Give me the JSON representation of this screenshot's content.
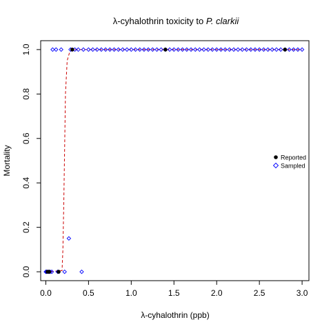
{
  "chart_data": {
    "type": "scatter",
    "title_prefix": "λ-cyhalothrin toxicity to ",
    "title_italic": "P. clarkii",
    "xlabel": "λ-cyhalothrin (ppb)",
    "ylabel": "Mortality",
    "xlim": [
      -0.06,
      3.08
    ],
    "ylim": [
      -0.04,
      1.04
    ],
    "x_ticks": [
      0.0,
      0.5,
      1.0,
      1.5,
      2.0,
      2.5,
      3.0
    ],
    "x_tick_labels": [
      "0.0",
      "0.5",
      "1.0",
      "1.5",
      "2.0",
      "2.5",
      "3.0"
    ],
    "y_ticks": [
      0.0,
      0.2,
      0.4,
      0.6,
      0.8,
      1.0
    ],
    "y_tick_labels": [
      "0.0",
      "0.2",
      "0.4",
      "0.6",
      "0.8",
      "1.0"
    ],
    "legend_position": "right",
    "series": [
      {
        "name": "Reported",
        "marker": "filled-circle",
        "color": "#000000",
        "points": [
          {
            "x": 0.02,
            "y": 0.0
          },
          {
            "x": 0.04,
            "y": 0.0
          },
          {
            "x": 0.15,
            "y": 0.0
          },
          {
            "x": 0.31,
            "y": 1.0
          },
          {
            "x": 1.4,
            "y": 1.0
          },
          {
            "x": 2.8,
            "y": 1.0
          }
        ]
      },
      {
        "name": "Sampled",
        "marker": "open-diamond",
        "color": "#0000ff",
        "points": [
          {
            "x": 0.0,
            "y": 0.0
          },
          {
            "x": 0.01,
            "y": 0.0
          },
          {
            "x": 0.03,
            "y": 0.0
          },
          {
            "x": 0.05,
            "y": 0.0
          },
          {
            "x": 0.07,
            "y": 0.0
          },
          {
            "x": 0.14,
            "y": 0.0
          },
          {
            "x": 0.22,
            "y": 0.0
          },
          {
            "x": 0.42,
            "y": 0.0
          },
          {
            "x": 0.27,
            "y": 0.15
          },
          {
            "x": 0.08,
            "y": 1.0
          },
          {
            "x": 0.12,
            "y": 1.0
          },
          {
            "x": 0.18,
            "y": 1.0
          },
          {
            "x": 0.29,
            "y": 1.0
          },
          {
            "x": 0.34,
            "y": 1.0
          },
          {
            "x": 0.38,
            "y": 1.0
          },
          {
            "x": 0.44,
            "y": 1.0
          },
          {
            "x": 0.5,
            "y": 1.0
          },
          {
            "x": 0.55,
            "y": 1.0
          },
          {
            "x": 0.6,
            "y": 1.0
          },
          {
            "x": 0.65,
            "y": 1.0
          },
          {
            "x": 0.7,
            "y": 1.0
          },
          {
            "x": 0.75,
            "y": 1.0
          },
          {
            "x": 0.8,
            "y": 1.0
          },
          {
            "x": 0.85,
            "y": 1.0
          },
          {
            "x": 0.9,
            "y": 1.0
          },
          {
            "x": 0.95,
            "y": 1.0
          },
          {
            "x": 1.0,
            "y": 1.0
          },
          {
            "x": 1.05,
            "y": 1.0
          },
          {
            "x": 1.1,
            "y": 1.0
          },
          {
            "x": 1.15,
            "y": 1.0
          },
          {
            "x": 1.2,
            "y": 1.0
          },
          {
            "x": 1.25,
            "y": 1.0
          },
          {
            "x": 1.3,
            "y": 1.0
          },
          {
            "x": 1.35,
            "y": 1.0
          },
          {
            "x": 1.4,
            "y": 1.0
          },
          {
            "x": 1.45,
            "y": 1.0
          },
          {
            "x": 1.5,
            "y": 1.0
          },
          {
            "x": 1.55,
            "y": 1.0
          },
          {
            "x": 1.6,
            "y": 1.0
          },
          {
            "x": 1.65,
            "y": 1.0
          },
          {
            "x": 1.7,
            "y": 1.0
          },
          {
            "x": 1.75,
            "y": 1.0
          },
          {
            "x": 1.8,
            "y": 1.0
          },
          {
            "x": 1.85,
            "y": 1.0
          },
          {
            "x": 1.9,
            "y": 1.0
          },
          {
            "x": 1.95,
            "y": 1.0
          },
          {
            "x": 2.0,
            "y": 1.0
          },
          {
            "x": 2.05,
            "y": 1.0
          },
          {
            "x": 2.1,
            "y": 1.0
          },
          {
            "x": 2.15,
            "y": 1.0
          },
          {
            "x": 2.2,
            "y": 1.0
          },
          {
            "x": 2.25,
            "y": 1.0
          },
          {
            "x": 2.3,
            "y": 1.0
          },
          {
            "x": 2.35,
            "y": 1.0
          },
          {
            "x": 2.4,
            "y": 1.0
          },
          {
            "x": 2.45,
            "y": 1.0
          },
          {
            "x": 2.5,
            "y": 1.0
          },
          {
            "x": 2.55,
            "y": 1.0
          },
          {
            "x": 2.6,
            "y": 1.0
          },
          {
            "x": 2.65,
            "y": 1.0
          },
          {
            "x": 2.7,
            "y": 1.0
          },
          {
            "x": 2.75,
            "y": 1.0
          },
          {
            "x": 2.8,
            "y": 1.0
          },
          {
            "x": 2.85,
            "y": 1.0
          },
          {
            "x": 2.9,
            "y": 1.0
          },
          {
            "x": 2.95,
            "y": 1.0
          },
          {
            "x": 3.0,
            "y": 1.0
          }
        ]
      },
      {
        "name": "",
        "type": "line",
        "style": "dashed",
        "color": "#cc0000",
        "points": [
          {
            "x": 0.0,
            "y": 0.0
          },
          {
            "x": 0.19,
            "y": 0.005
          },
          {
            "x": 0.2,
            "y": 0.1
          },
          {
            "x": 0.21,
            "y": 0.3
          },
          {
            "x": 0.22,
            "y": 0.55
          },
          {
            "x": 0.23,
            "y": 0.8
          },
          {
            "x": 0.25,
            "y": 0.95
          },
          {
            "x": 0.28,
            "y": 0.99
          },
          {
            "x": 0.32,
            "y": 1.0
          },
          {
            "x": 3.0,
            "y": 1.0
          }
        ]
      }
    ]
  }
}
